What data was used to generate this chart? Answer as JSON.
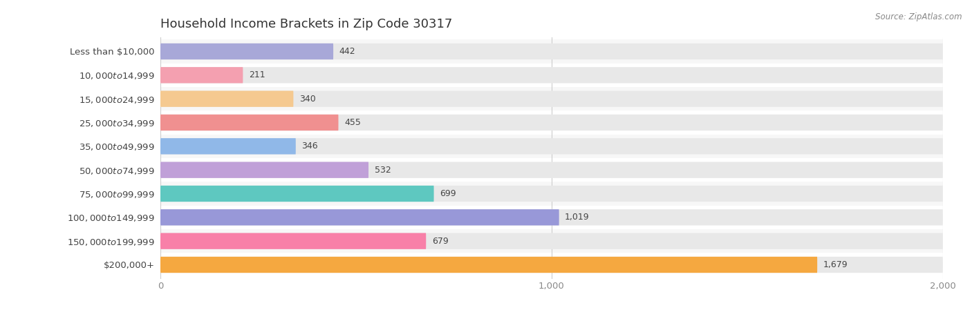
{
  "title": "Household Income Brackets in Zip Code 30317",
  "source": "Source: ZipAtlas.com",
  "categories": [
    "Less than $10,000",
    "$10,000 to $14,999",
    "$15,000 to $24,999",
    "$25,000 to $34,999",
    "$35,000 to $49,999",
    "$50,000 to $74,999",
    "$75,000 to $99,999",
    "$100,000 to $149,999",
    "$150,000 to $199,999",
    "$200,000+"
  ],
  "values": [
    442,
    211,
    340,
    455,
    346,
    532,
    699,
    1019,
    679,
    1679
  ],
  "bar_colors": [
    "#a8a8d8",
    "#f4a0b0",
    "#f5c990",
    "#f09090",
    "#90b8e8",
    "#c0a0d8",
    "#5ec8c0",
    "#9898d8",
    "#f880a8",
    "#f5a840"
  ],
  "background_color": "#ffffff",
  "bar_background_color": "#e8e8e8",
  "xlim": [
    0,
    2000
  ],
  "xticks": [
    0,
    1000,
    2000
  ],
  "title_fontsize": 13,
  "label_fontsize": 9.5,
  "value_fontsize": 9,
  "bar_height": 0.68,
  "grid_color": "#cccccc",
  "tick_color": "#888888",
  "label_color": "#444444",
  "value_color": "#444444",
  "row_separator_color": "#f0f0f0"
}
